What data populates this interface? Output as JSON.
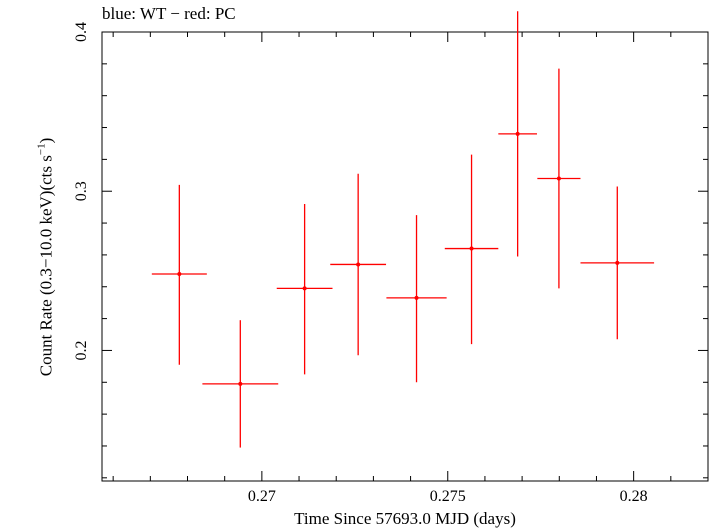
{
  "chart_data": {
    "type": "scatter",
    "title": "blue: WT − red: PC",
    "xlabel": "Time Since 57693.0 MJD (days)",
    "ylabel_main": "Count Rate (0.3−10.0 keV)(cts s",
    "ylabel_sup": "−1",
    "ylabel_end": ")",
    "xlim": [
      0.2657,
      0.282
    ],
    "ylim": [
      0.118,
      0.4
    ],
    "xticks": [
      0.27,
      0.275,
      0.28
    ],
    "xtick_labels": [
      "0.27",
      "0.275",
      "0.28"
    ],
    "yticks": [
      0.2,
      0.3,
      0.4
    ],
    "ytick_labels": [
      "0.2",
      "0.3",
      "0.4"
    ],
    "grid": false,
    "series": [
      {
        "color": "#ff0000",
        "points": [
          {
            "x": 0.26778,
            "y": 0.248,
            "xerr": 0.00074,
            "ylo": 0.191,
            "yhi": 0.304
          },
          {
            "x": 0.26942,
            "y": 0.179,
            "xerr": 0.00102,
            "ylo": 0.139,
            "yhi": 0.219
          },
          {
            "x": 0.27115,
            "y": 0.239,
            "xerr": 0.00075,
            "ylo": 0.185,
            "yhi": 0.292
          },
          {
            "x": 0.27259,
            "y": 0.254,
            "xerr": 0.00075,
            "ylo": 0.197,
            "yhi": 0.311
          },
          {
            "x": 0.27416,
            "y": 0.233,
            "xerr": 0.00081,
            "ylo": 0.18,
            "yhi": 0.285
          },
          {
            "x": 0.27564,
            "y": 0.264,
            "xerr": 0.00072,
            "ylo": 0.204,
            "yhi": 0.323
          },
          {
            "x": 0.27688,
            "y": 0.336,
            "xerr": 0.00052,
            "ylo": 0.259,
            "yhi": 0.413
          },
          {
            "x": 0.27799,
            "y": 0.308,
            "xerr": 0.00058,
            "ylo": 0.239,
            "yhi": 0.377
          },
          {
            "x": 0.27956,
            "y": 0.255,
            "xerr": 0.00099,
            "ylo": 0.207,
            "yhi": 0.303
          }
        ]
      }
    ]
  }
}
